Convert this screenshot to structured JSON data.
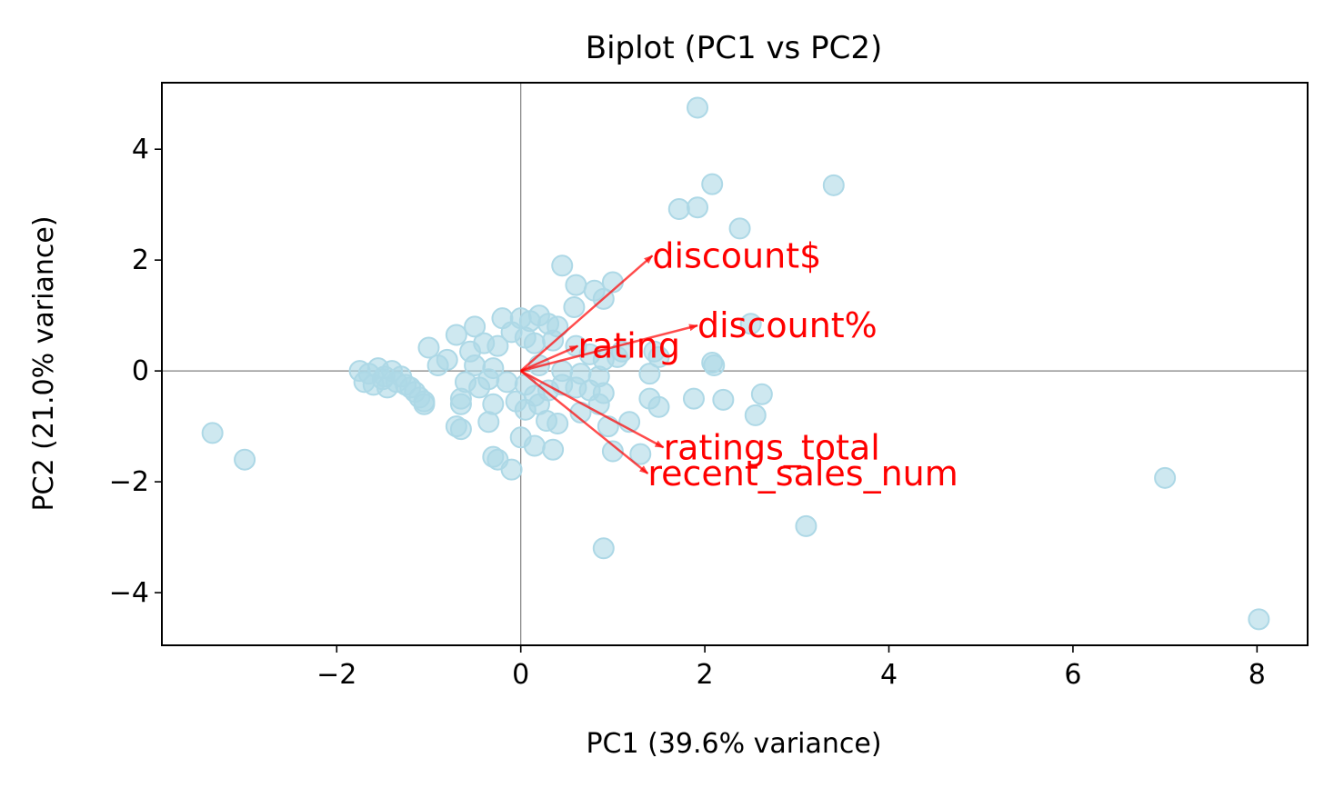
{
  "chart_data": {
    "type": "scatter",
    "title": "Biplot (PC1 vs PC2)",
    "xlabel": "PC1 (39.6% variance)",
    "ylabel": "PC2 (21.0% variance)",
    "xlim": [
      -3.9,
      8.55
    ],
    "ylim": [
      -4.95,
      5.2
    ],
    "xticks": [
      -2,
      0,
      2,
      4,
      6,
      8
    ],
    "yticks": [
      -4,
      -2,
      0,
      2,
      4
    ],
    "xtick_labels": [
      "−2",
      "0",
      "2",
      "4",
      "6",
      "8"
    ],
    "ytick_labels": [
      "−4",
      "−2",
      "0",
      "2",
      "4"
    ],
    "grid": false,
    "reference_lines": [
      {
        "axis": "x",
        "value": 0
      },
      {
        "axis": "y",
        "value": 0
      }
    ],
    "colors": {
      "points": "#add8e6",
      "arrows": "#ff0000",
      "reference": "#808080"
    },
    "points": [
      [
        1.92,
        4.75
      ],
      [
        2.08,
        3.37
      ],
      [
        3.4,
        3.35
      ],
      [
        1.92,
        2.95
      ],
      [
        1.72,
        2.92
      ],
      [
        2.38,
        2.57
      ],
      [
        0.45,
        1.9
      ],
      [
        0.6,
        1.55
      ],
      [
        1.0,
        1.6
      ],
      [
        0.8,
        1.45
      ],
      [
        0.9,
        1.3
      ],
      [
        0.58,
        1.15
      ],
      [
        0.2,
        1.0
      ],
      [
        0.0,
        0.95
      ],
      [
        -0.2,
        0.95
      ],
      [
        0.1,
        0.9
      ],
      [
        0.3,
        0.85
      ],
      [
        0.4,
        0.8
      ],
      [
        -0.5,
        0.8
      ],
      [
        -0.7,
        0.65
      ],
      [
        -0.1,
        0.7
      ],
      [
        0.05,
        0.6
      ],
      [
        0.35,
        0.55
      ],
      [
        0.15,
        0.5
      ],
      [
        -0.4,
        0.5
      ],
      [
        -0.25,
        0.45
      ],
      [
        -0.55,
        0.35
      ],
      [
        -1.0,
        0.42
      ],
      [
        0.6,
        0.45
      ],
      [
        0.75,
        0.3
      ],
      [
        0.9,
        0.2
      ],
      [
        1.05,
        0.25
      ],
      [
        1.1,
        0.35
      ],
      [
        1.45,
        0.35
      ],
      [
        1.5,
        0.25
      ],
      [
        2.5,
        0.85
      ],
      [
        2.08,
        0.15
      ],
      [
        2.1,
        0.1
      ],
      [
        -0.8,
        0.2
      ],
      [
        -0.9,
        0.1
      ],
      [
        -0.5,
        0.1
      ],
      [
        -0.3,
        0.05
      ],
      [
        0.2,
        0.1
      ],
      [
        0.45,
        0.0
      ],
      [
        0.65,
        -0.05
      ],
      [
        0.85,
        -0.1
      ],
      [
        1.4,
        -0.05
      ],
      [
        -0.35,
        -0.15
      ],
      [
        -0.15,
        -0.2
      ],
      [
        0.05,
        -0.25
      ],
      [
        -0.6,
        -0.2
      ],
      [
        -0.45,
        -0.3
      ],
      [
        -1.75,
        0.0
      ],
      [
        -1.65,
        -0.05
      ],
      [
        -1.55,
        0.05
      ],
      [
        -1.48,
        -0.1
      ],
      [
        -1.4,
        0.0
      ],
      [
        -1.35,
        -0.2
      ],
      [
        -1.3,
        -0.1
      ],
      [
        -1.25,
        -0.25
      ],
      [
        -1.2,
        -0.3
      ],
      [
        -1.15,
        -0.38
      ],
      [
        -1.1,
        -0.48
      ],
      [
        -1.05,
        -0.55
      ],
      [
        -1.7,
        -0.2
      ],
      [
        -1.6,
        -0.25
      ],
      [
        -1.5,
        -0.15
      ],
      [
        -1.45,
        -0.3
      ],
      [
        -1.05,
        -0.6
      ],
      [
        0.9,
        -0.4
      ],
      [
        0.75,
        -0.35
      ],
      [
        0.6,
        -0.3
      ],
      [
        0.45,
        -0.25
      ],
      [
        0.3,
        -0.35
      ],
      [
        0.15,
        -0.45
      ],
      [
        -0.05,
        -0.55
      ],
      [
        -0.3,
        -0.6
      ],
      [
        -0.65,
        -0.5
      ],
      [
        -0.65,
        -0.6
      ],
      [
        0.05,
        -0.7
      ],
      [
        0.2,
        -0.6
      ],
      [
        0.85,
        -0.6
      ],
      [
        0.65,
        -0.75
      ],
      [
        1.4,
        -0.5
      ],
      [
        1.5,
        -0.65
      ],
      [
        1.88,
        -0.5
      ],
      [
        2.2,
        -0.52
      ],
      [
        2.62,
        -0.42
      ],
      [
        2.55,
        -0.8
      ],
      [
        1.18,
        -0.92
      ],
      [
        0.95,
        -1.0
      ],
      [
        0.4,
        -0.95
      ],
      [
        0.28,
        -0.9
      ],
      [
        -0.35,
        -0.92
      ],
      [
        -0.7,
        -1.0
      ],
      [
        -0.65,
        -1.05
      ],
      [
        0.0,
        -1.2
      ],
      [
        0.15,
        -1.35
      ],
      [
        0.35,
        -1.42
      ],
      [
        -0.3,
        -1.55
      ],
      [
        -0.25,
        -1.6
      ],
      [
        -0.1,
        -1.78
      ],
      [
        1.0,
        -1.45
      ],
      [
        1.3,
        -1.5
      ],
      [
        -3.35,
        -1.12
      ],
      [
        -3.0,
        -1.6
      ],
      [
        3.1,
        -2.8
      ],
      [
        0.9,
        -3.2
      ],
      [
        7.0,
        -1.93
      ],
      [
        8.02,
        -4.48
      ]
    ],
    "loadings": [
      {
        "label": "discount$",
        "x": 1.43,
        "y": 2.08
      },
      {
        "label": "discount%",
        "x": 1.92,
        "y": 0.82
      },
      {
        "label": "rating",
        "x": 0.62,
        "y": 0.45
      },
      {
        "label": "ratings_total",
        "x": 1.55,
        "y": -1.38
      },
      {
        "label": "recent_sales_num",
        "x": 1.38,
        "y": -1.85
      }
    ]
  }
}
